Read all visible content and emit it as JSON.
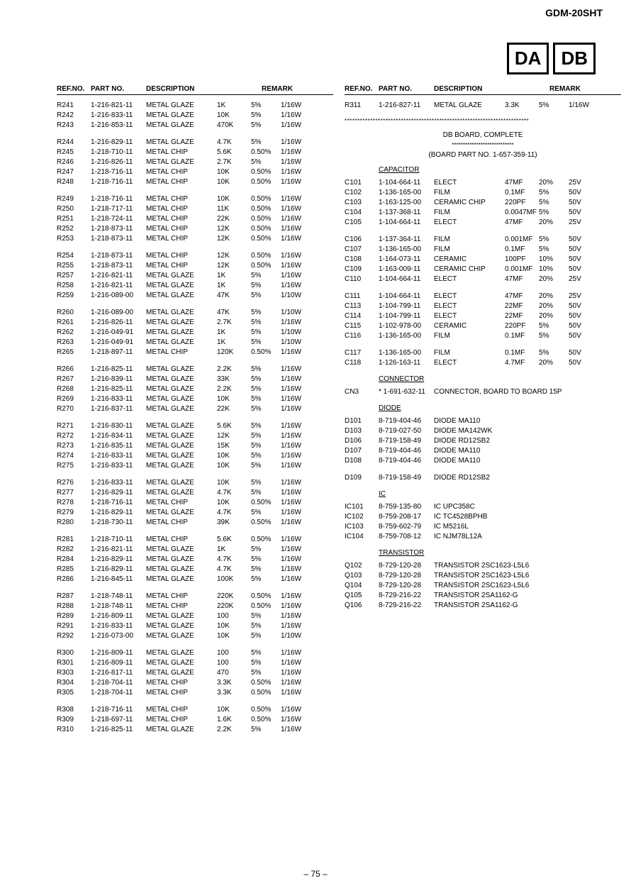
{
  "model": "GDM-20SHT",
  "boxes": [
    "DA",
    "DB"
  ],
  "pageNum": "– 75 –",
  "colHeaders": {
    "ref": "REF.NO.",
    "part": "PART NO.",
    "desc": "DESCRIPTION",
    "remark": "REMARK"
  },
  "left": [
    {
      "ref": "R241",
      "part": "1-216-821-11",
      "desc": "METAL GLAZE",
      "val": "1K",
      "tol": "5%",
      "pow": "1/16W"
    },
    {
      "ref": "R242",
      "part": "1-216-833-11",
      "desc": "METAL GLAZE",
      "val": "10K",
      "tol": "5%",
      "pow": "1/16W"
    },
    {
      "ref": "R243",
      "part": "1-216-853-11",
      "desc": "METAL GLAZE",
      "val": "470K",
      "tol": "5%",
      "pow": "1/16W"
    },
    {
      "gap": true
    },
    {
      "ref": "R244",
      "part": "1-216-829-11",
      "desc": "METAL GLAZE",
      "val": "4.7K",
      "tol": "5%",
      "pow": "1/16W"
    },
    {
      "ref": "R245",
      "part": "1-218-710-11",
      "desc": "METAL CHIP",
      "val": "5.6K",
      "tol": "0.50%",
      "pow": "1/16W"
    },
    {
      "ref": "R246",
      "part": "1-216-826-11",
      "desc": "METAL GLAZE",
      "val": "2.7K",
      "tol": "5%",
      "pow": "1/16W"
    },
    {
      "ref": "R247",
      "part": "1-218-716-11",
      "desc": "METAL CHIP",
      "val": "10K",
      "tol": "0.50%",
      "pow": "1/16W"
    },
    {
      "ref": "R248",
      "part": "1-218-716-11",
      "desc": "METAL CHIP",
      "val": "10K",
      "tol": "0.50%",
      "pow": "1/16W"
    },
    {
      "gap": true
    },
    {
      "ref": "R249",
      "part": "1-218-716-11",
      "desc": "METAL CHIP",
      "val": "10K",
      "tol": "0.50%",
      "pow": "1/16W"
    },
    {
      "ref": "R250",
      "part": "1-218-717-11",
      "desc": "METAL CHIP",
      "val": "11K",
      "tol": "0.50%",
      "pow": "1/16W"
    },
    {
      "ref": "R251",
      "part": "1-218-724-11",
      "desc": "METAL CHIP",
      "val": "22K",
      "tol": "0.50%",
      "pow": "1/16W"
    },
    {
      "ref": "R252",
      "part": "1-218-873-11",
      "desc": "METAL CHIP",
      "val": "12K",
      "tol": "0.50%",
      "pow": "1/16W"
    },
    {
      "ref": "R253",
      "part": "1-218-873-11",
      "desc": "METAL CHIP",
      "val": "12K",
      "tol": "0.50%",
      "pow": "1/16W"
    },
    {
      "gap": true
    },
    {
      "ref": "R254",
      "part": "1-218-873-11",
      "desc": "METAL CHIP",
      "val": "12K",
      "tol": "0.50%",
      "pow": "1/16W"
    },
    {
      "ref": "R255",
      "part": "1-218-873-11",
      "desc": "METAL CHIP",
      "val": "12K",
      "tol": "0.50%",
      "pow": "1/16W"
    },
    {
      "ref": "R257",
      "part": "1-216-821-11",
      "desc": "METAL GLAZE",
      "val": "1K",
      "tol": "5%",
      "pow": "1/16W"
    },
    {
      "ref": "R258",
      "part": "1-216-821-11",
      "desc": "METAL GLAZE",
      "val": "1K",
      "tol": "5%",
      "pow": "1/16W"
    },
    {
      "ref": "R259",
      "part": "1-216-089-00",
      "desc": "METAL GLAZE",
      "val": "47K",
      "tol": "5%",
      "pow": "1/10W"
    },
    {
      "gap": true
    },
    {
      "ref": "R260",
      "part": "1-216-089-00",
      "desc": "METAL GLAZE",
      "val": "47K",
      "tol": "5%",
      "pow": "1/10W"
    },
    {
      "ref": "R261",
      "part": "1-216-826-11",
      "desc": "METAL GLAZE",
      "val": "2.7K",
      "tol": "5%",
      "pow": "1/16W"
    },
    {
      "ref": "R262",
      "part": "1-216-049-91",
      "desc": "METAL GLAZE",
      "val": "1K",
      "tol": "5%",
      "pow": "1/10W"
    },
    {
      "ref": "R263",
      "part": "1-216-049-91",
      "desc": "METAL GLAZE",
      "val": "1K",
      "tol": "5%",
      "pow": "1/10W"
    },
    {
      "ref": "R265",
      "part": "1-218-897-11",
      "desc": "METAL CHIP",
      "val": "120K",
      "tol": "0.50%",
      "pow": "1/16W"
    },
    {
      "gap": true
    },
    {
      "ref": "R266",
      "part": "1-216-825-11",
      "desc": "METAL GLAZE",
      "val": "2.2K",
      "tol": "5%",
      "pow": "1/16W"
    },
    {
      "ref": "R267",
      "part": "1-216-839-11",
      "desc": "METAL GLAZE",
      "val": "33K",
      "tol": "5%",
      "pow": "1/16W"
    },
    {
      "ref": "R268",
      "part": "1-216-825-11",
      "desc": "METAL GLAZE",
      "val": "2.2K",
      "tol": "5%",
      "pow": "1/16W"
    },
    {
      "ref": "R269",
      "part": "1-216-833-11",
      "desc": "METAL GLAZE",
      "val": "10K",
      "tol": "5%",
      "pow": "1/16W"
    },
    {
      "ref": "R270",
      "part": "1-216-837-11",
      "desc": "METAL GLAZE",
      "val": "22K",
      "tol": "5%",
      "pow": "1/16W"
    },
    {
      "gap": true
    },
    {
      "ref": "R271",
      "part": "1-216-830-11",
      "desc": "METAL GLAZE",
      "val": "5.6K",
      "tol": "5%",
      "pow": "1/16W"
    },
    {
      "ref": "R272",
      "part": "1-216-834-11",
      "desc": "METAL GLAZE",
      "val": "12K",
      "tol": "5%",
      "pow": "1/16W"
    },
    {
      "ref": "R273",
      "part": "1-216-835-11",
      "desc": "METAL GLAZE",
      "val": "15K",
      "tol": "5%",
      "pow": "1/16W"
    },
    {
      "ref": "R274",
      "part": "1-216-833-11",
      "desc": "METAL GLAZE",
      "val": "10K",
      "tol": "5%",
      "pow": "1/16W"
    },
    {
      "ref": "R275",
      "part": "1-216-833-11",
      "desc": "METAL GLAZE",
      "val": "10K",
      "tol": "5%",
      "pow": "1/16W"
    },
    {
      "gap": true
    },
    {
      "ref": "R276",
      "part": "1-216-833-11",
      "desc": "METAL GLAZE",
      "val": "10K",
      "tol": "5%",
      "pow": "1/16W"
    },
    {
      "ref": "R277",
      "part": "1-216-829-11",
      "desc": "METAL GLAZE",
      "val": "4.7K",
      "tol": "5%",
      "pow": "1/16W"
    },
    {
      "ref": "R278",
      "part": "1-218-716-11",
      "desc": "METAL CHIP",
      "val": "10K",
      "tol": "0.50%",
      "pow": "1/16W"
    },
    {
      "ref": "R279",
      "part": "1-216-829-11",
      "desc": "METAL GLAZE",
      "val": "4.7K",
      "tol": "5%",
      "pow": "1/16W"
    },
    {
      "ref": "R280",
      "part": "1-218-730-11",
      "desc": "METAL CHIP",
      "val": "39K",
      "tol": "0.50%",
      "pow": "1/16W"
    },
    {
      "gap": true
    },
    {
      "ref": "R281",
      "part": "1-218-710-11",
      "desc": "METAL CHIP",
      "val": "5.6K",
      "tol": "0.50%",
      "pow": "1/16W"
    },
    {
      "ref": "R282",
      "part": "1-216-821-11",
      "desc": "METAL GLAZE",
      "val": "1K",
      "tol": "5%",
      "pow": "1/16W"
    },
    {
      "ref": "R284",
      "part": "1-216-829-11",
      "desc": "METAL GLAZE",
      "val": "4.7K",
      "tol": "5%",
      "pow": "1/16W"
    },
    {
      "ref": "R285",
      "part": "1-216-829-11",
      "desc": "METAL GLAZE",
      "val": "4.7K",
      "tol": "5%",
      "pow": "1/16W"
    },
    {
      "ref": "R286",
      "part": "1-216-845-11",
      "desc": "METAL GLAZE",
      "val": "100K",
      "tol": "5%",
      "pow": "1/16W"
    },
    {
      "gap": true
    },
    {
      "ref": "R287",
      "part": "1-218-748-11",
      "desc": "METAL CHIP",
      "val": "220K",
      "tol": "0.50%",
      "pow": "1/16W"
    },
    {
      "ref": "R288",
      "part": "1-218-748-11",
      "desc": "METAL CHIP",
      "val": "220K",
      "tol": "0.50%",
      "pow": "1/16W"
    },
    {
      "ref": "R289",
      "part": "1-216-809-11",
      "desc": "METAL GLAZE",
      "val": "100",
      "tol": "5%",
      "pow": "1/16W"
    },
    {
      "ref": "R291",
      "part": "1-216-833-11",
      "desc": "METAL GLAZE",
      "val": "10K",
      "tol": "5%",
      "pow": "1/16W"
    },
    {
      "ref": "R292",
      "part": "1-216-073-00",
      "desc": "METAL GLAZE",
      "val": "10K",
      "tol": "5%",
      "pow": "1/10W"
    },
    {
      "gap": true
    },
    {
      "ref": "R300",
      "part": "1-216-809-11",
      "desc": "METAL GLAZE",
      "val": "100",
      "tol": "5%",
      "pow": "1/16W"
    },
    {
      "ref": "R301",
      "part": "1-216-809-11",
      "desc": "METAL GLAZE",
      "val": "100",
      "tol": "5%",
      "pow": "1/16W"
    },
    {
      "ref": "R303",
      "part": "1-216-817-11",
      "desc": "METAL GLAZE",
      "val": "470",
      "tol": "5%",
      "pow": "1/16W"
    },
    {
      "ref": "R304",
      "part": "1-218-704-11",
      "desc": "METAL CHIP",
      "val": "3.3K",
      "tol": "0.50%",
      "pow": "1/16W"
    },
    {
      "ref": "R305",
      "part": "1-218-704-11",
      "desc": "METAL CHIP",
      "val": "3.3K",
      "tol": "0.50%",
      "pow": "1/16W"
    },
    {
      "gap": true
    },
    {
      "ref": "R308",
      "part": "1-218-716-11",
      "desc": "METAL CHIP",
      "val": "10K",
      "tol": "0.50%",
      "pow": "1/16W"
    },
    {
      "ref": "R309",
      "part": "1-218-697-11",
      "desc": "METAL CHIP",
      "val": "1.6K",
      "tol": "0.50%",
      "pow": "1/16W"
    },
    {
      "ref": "R310",
      "part": "1-216-825-11",
      "desc": "METAL GLAZE",
      "val": "2.2K",
      "tol": "5%",
      "pow": "1/16W"
    }
  ],
  "rightTop": [
    {
      "ref": "R311",
      "part": "1-216-827-11",
      "desc": "METAL GLAZE",
      "val": "3.3K",
      "tol": "5%",
      "pow": "1/16W"
    }
  ],
  "dbBoard": {
    "title": "DB BOARD, COMPLETE",
    "boardPart": "(BOARD PART NO. 1-657-359-11)"
  },
  "sections": {
    "capacitor": "CAPACITOR",
    "connector": "CONNECTOR",
    "diode": "DIODE",
    "ic": "IC",
    "transistor": "TRANSISTOR"
  },
  "capacitors": [
    {
      "ref": "C101",
      "part": "1-104-664-11",
      "desc": "ELECT",
      "val": "47MF",
      "tol": "20%",
      "pow": "25V"
    },
    {
      "ref": "C102",
      "part": "1-136-165-00",
      "desc": "FILM",
      "val": "0.1MF",
      "tol": "5%",
      "pow": "50V"
    },
    {
      "ref": "C103",
      "part": "1-163-125-00",
      "desc": "CERAMIC CHIP",
      "val": "220PF",
      "tol": "5%",
      "pow": "50V"
    },
    {
      "ref": "C104",
      "part": "1-137-368-11",
      "desc": "FILM",
      "val": "0.0047MF",
      "tol": "5%",
      "pow": "50V"
    },
    {
      "ref": "C105",
      "part": "1-104-664-11",
      "desc": "ELECT",
      "val": "47MF",
      "tol": "20%",
      "pow": "25V"
    },
    {
      "gap": true
    },
    {
      "ref": "C106",
      "part": "1-137-364-11",
      "desc": "FILM",
      "val": "0.001MF",
      "tol": "5%",
      "pow": "50V"
    },
    {
      "ref": "C107",
      "part": "1-136-165-00",
      "desc": "FILM",
      "val": "0.1MF",
      "tol": "5%",
      "pow": "50V"
    },
    {
      "ref": "C108",
      "part": "1-164-073-11",
      "desc": "CERAMIC",
      "val": "100PF",
      "tol": "10%",
      "pow": "50V"
    },
    {
      "ref": "C109",
      "part": "1-163-009-11",
      "desc": "CERAMIC CHIP",
      "val": "0.001MF",
      "tol": "10%",
      "pow": "50V"
    },
    {
      "ref": "C110",
      "part": "1-104-664-11",
      "desc": "ELECT",
      "val": "47MF",
      "tol": "20%",
      "pow": "25V"
    },
    {
      "gap": true
    },
    {
      "ref": "C111",
      "part": "1-104-664-11",
      "desc": "ELECT",
      "val": "47MF",
      "tol": "20%",
      "pow": "25V"
    },
    {
      "ref": "C113",
      "part": "1-104-799-11",
      "desc": "ELECT",
      "val": "22MF",
      "tol": "20%",
      "pow": "50V"
    },
    {
      "ref": "C114",
      "part": "1-104-799-11",
      "desc": "ELECT",
      "val": "22MF",
      "tol": "20%",
      "pow": "50V"
    },
    {
      "ref": "C115",
      "part": "1-102-978-00",
      "desc": "CERAMIC",
      "val": "220PF",
      "tol": "5%",
      "pow": "50V"
    },
    {
      "ref": "C116",
      "part": "1-136-165-00",
      "desc": "FILM",
      "val": "0.1MF",
      "tol": "5%",
      "pow": "50V"
    },
    {
      "gap": true
    },
    {
      "ref": "C117",
      "part": "1-136-165-00",
      "desc": "FILM",
      "val": "0.1MF",
      "tol": "5%",
      "pow": "50V"
    },
    {
      "ref": "C118",
      "part": "1-126-163-11",
      "desc": "ELECT",
      "val": "4.7MF",
      "tol": "20%",
      "pow": "50V"
    }
  ],
  "connectors": [
    {
      "ref": "CN3",
      "part": "* 1-691-632-11",
      "desc": "CONNECTOR, BOARD TO BOARD 15P"
    }
  ],
  "diodes": [
    {
      "ref": "D101",
      "part": "8-719-404-46",
      "desc": "DIODE MA110"
    },
    {
      "ref": "D103",
      "part": "8-719-027-50",
      "desc": "DIODE MA142WK"
    },
    {
      "ref": "D106",
      "part": "8-719-158-49",
      "desc": "DIODE RD12SB2"
    },
    {
      "ref": "D107",
      "part": "8-719-404-46",
      "desc": "DIODE MA110"
    },
    {
      "ref": "D108",
      "part": "8-719-404-46",
      "desc": "DIODE MA110"
    },
    {
      "gap": true
    },
    {
      "ref": "D109",
      "part": "8-719-158-49",
      "desc": "DIODE RD12SB2"
    }
  ],
  "ics": [
    {
      "ref": "IC101",
      "part": "8-759-135-80",
      "desc": "IC UPC358C"
    },
    {
      "ref": "IC102",
      "part": "8-759-208-17",
      "desc": "IC TC4528BPHB"
    },
    {
      "ref": "IC103",
      "part": "8-759-602-79",
      "desc": "IC M5216L"
    },
    {
      "ref": "IC104",
      "part": "8-759-708-12",
      "desc": "IC NJM78L12A"
    }
  ],
  "transistors": [
    {
      "ref": "Q102",
      "part": "8-729-120-28",
      "desc": "TRANSISTOR 2SC1623-L5L6"
    },
    {
      "ref": "Q103",
      "part": "8-729-120-28",
      "desc": "TRANSISTOR 2SC1623-L5L6"
    },
    {
      "ref": "Q104",
      "part": "8-729-120-28",
      "desc": "TRANSISTOR 2SC1623-L5L6"
    },
    {
      "ref": "Q105",
      "part": "8-729-216-22",
      "desc": "TRANSISTOR 2SA1162-G"
    },
    {
      "ref": "Q106",
      "part": "8-729-216-22",
      "desc": "TRANSISTOR 2SA1162-G"
    }
  ]
}
